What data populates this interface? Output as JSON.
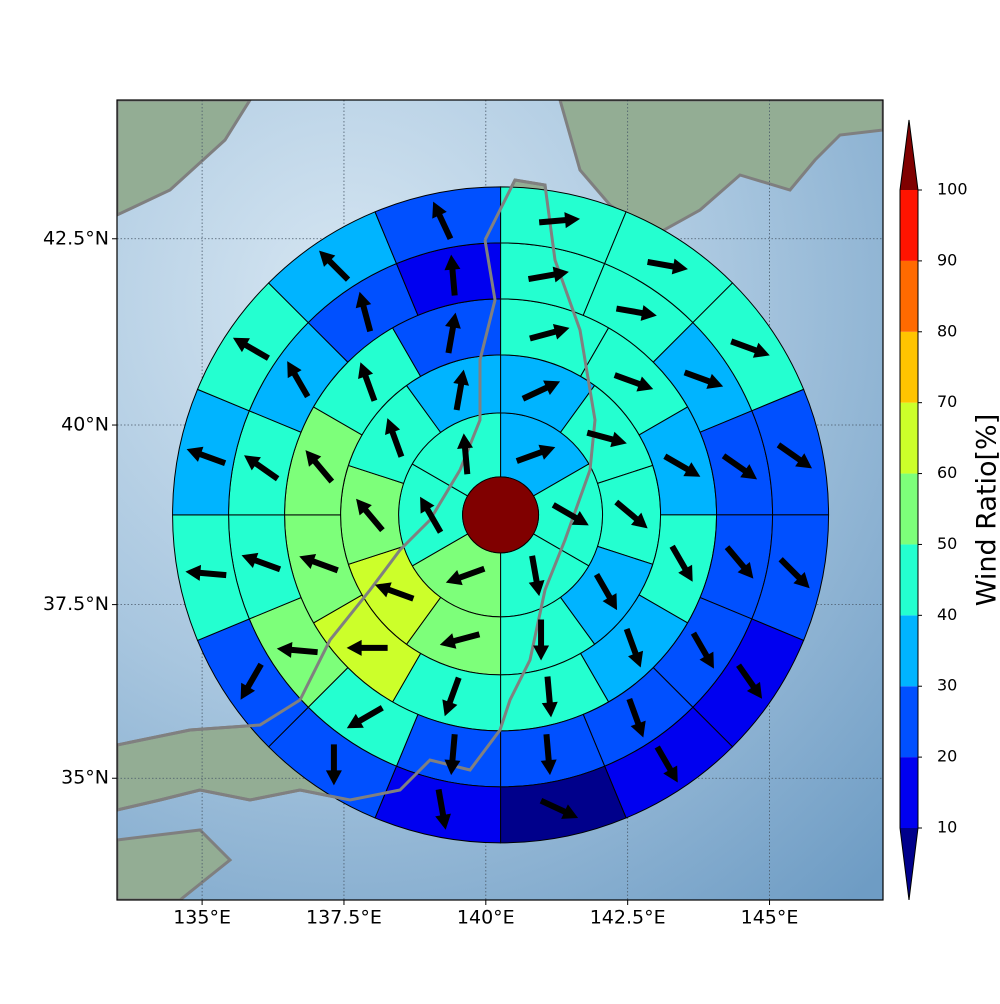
{
  "chart_data": {
    "type": "polar-sector-map",
    "projection": "mercator",
    "xlim": [
      133.5,
      147
    ],
    "ylim": [
      33.2,
      44.3
    ],
    "xticks": [
      {
        "value": 135,
        "label": "135°E"
      },
      {
        "value": 137.5,
        "label": "137.5°E"
      },
      {
        "value": 140,
        "label": "140°E"
      },
      {
        "value": 142.5,
        "label": "142.5°E"
      },
      {
        "value": 145,
        "label": "145°E"
      }
    ],
    "yticks": [
      {
        "value": 35,
        "label": "35°N"
      },
      {
        "value": 37.5,
        "label": "37.5°N"
      },
      {
        "value": 40,
        "label": "40°N"
      },
      {
        "value": 42.5,
        "label": "42.5°N"
      }
    ],
    "grid": true,
    "center_lon": 140.26,
    "center_lat": 38.76,
    "center_value": 100,
    "rings": [
      {
        "values": [
          35,
          45,
          45,
          55,
          45,
          45
        ],
        "directions": [
          70,
          120,
          170,
          250,
          330,
          355
        ]
      },
      {
        "values": [
          35,
          45,
          45,
          35,
          45,
          55,
          65,
          55,
          45,
          35
        ],
        "directions": [
          65,
          105,
          130,
          150,
          180,
          255,
          290,
          320,
          340,
          10
        ]
      },
      {
        "values": [
          45,
          45,
          35,
          45,
          35,
          45,
          45,
          65,
          55,
          55,
          45,
          25
        ],
        "directions": [
          75,
          110,
          120,
          150,
          160,
          175,
          200,
          270,
          290,
          320,
          340,
          10
        ]
      },
      {
        "values": [
          45,
          45,
          35,
          25,
          25,
          25,
          25,
          25,
          25,
          45,
          55,
          45,
          45,
          35,
          25,
          15
        ],
        "directions": [
          80,
          100,
          110,
          125,
          140,
          150,
          160,
          175,
          185,
          240,
          275,
          290,
          305,
          330,
          345,
          355
        ]
      },
      {
        "values": [
          45,
          45,
          45,
          25,
          25,
          15,
          15,
          5,
          15,
          25,
          25,
          45,
          35,
          45,
          35,
          25
        ],
        "directions": [
          85,
          100,
          110,
          125,
          135,
          145,
          150,
          115,
          170,
          180,
          210,
          275,
          290,
          300,
          315,
          335
        ]
      }
    ],
    "colorbar_label": "Wind Ratio[%]",
    "levels": [
      10,
      20,
      30,
      40,
      50,
      60,
      70,
      80,
      90,
      100
    ],
    "colors": [
      "#0000f0",
      "#0050ff",
      "#00b4ff",
      "#24ffd0",
      "#7dff7a",
      "#ccff2a",
      "#ffc400",
      "#ff6a00",
      "#ff1400"
    ],
    "under_color": "#00008b",
    "over_color": "#800000"
  }
}
